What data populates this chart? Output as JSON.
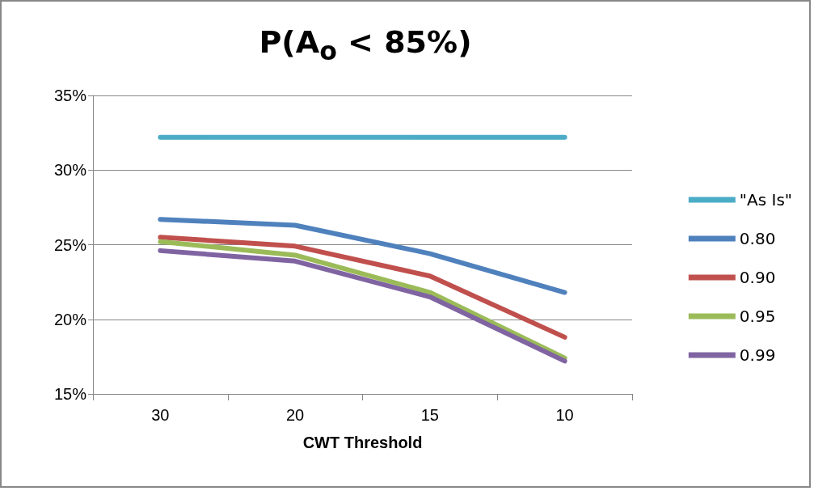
{
  "chart_data": {
    "type": "line",
    "title": "P(A$_{o}$ < 85%)",
    "xlabel": "CWT Threshold",
    "categories": [
      "30",
      "20",
      "15",
      "10"
    ],
    "series": [
      {
        "name": "\"As Is\"",
        "color": "#4bacc6",
        "values": [
          32.2,
          32.2,
          32.2,
          32.2
        ]
      },
      {
        "name": "0.80",
        "color": "#4f81bd",
        "values": [
          26.7,
          26.3,
          24.4,
          21.8
        ]
      },
      {
        "name": "0.90",
        "color": "#c0504d",
        "values": [
          25.5,
          24.9,
          22.9,
          18.8
        ]
      },
      {
        "name": "0.95",
        "color": "#9bbb59",
        "values": [
          25.2,
          24.3,
          21.8,
          17.4
        ]
      },
      {
        "name": "0.99",
        "color": "#8064a2",
        "values": [
          24.6,
          23.9,
          21.5,
          17.2
        ]
      }
    ],
    "ylim": [
      15,
      35
    ],
    "yticks": [
      {
        "value": 15,
        "label": "15%"
      },
      {
        "value": 20,
        "label": "20%"
      },
      {
        "value": 25,
        "label": "25%"
      },
      {
        "value": 30,
        "label": "30%"
      },
      {
        "value": 35,
        "label": "35%"
      }
    ],
    "grid": "y",
    "legend": "right",
    "marker": "none",
    "line_style": "solid"
  }
}
